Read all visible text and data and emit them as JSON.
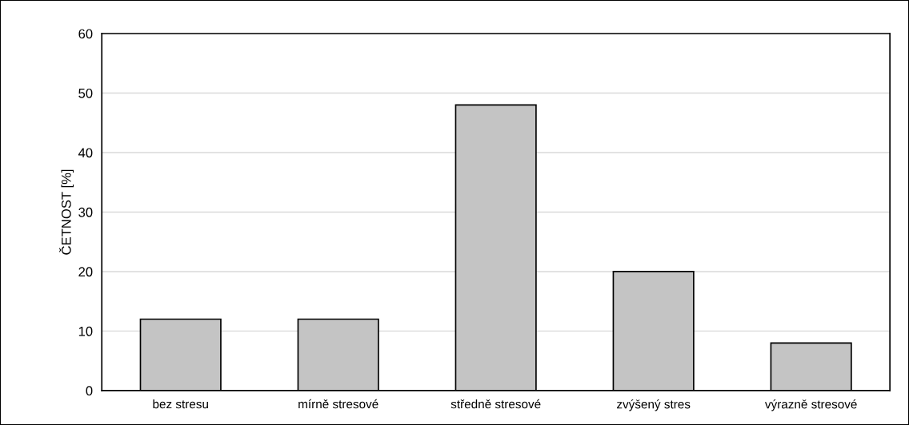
{
  "chart_data": {
    "type": "bar",
    "ylabel": "ČETNOST [%]",
    "categories": [
      "bez stresu",
      "mírně stresové",
      "středně stresové",
      "zvýšený stres",
      "výrazně stresové"
    ],
    "values": [
      12,
      12,
      48,
      20,
      8
    ],
    "color": "#c4c4c4",
    "ylim": [
      0,
      60
    ],
    "yticks": [
      0,
      10,
      20,
      30,
      40,
      50,
      60
    ],
    "grid": "y"
  }
}
